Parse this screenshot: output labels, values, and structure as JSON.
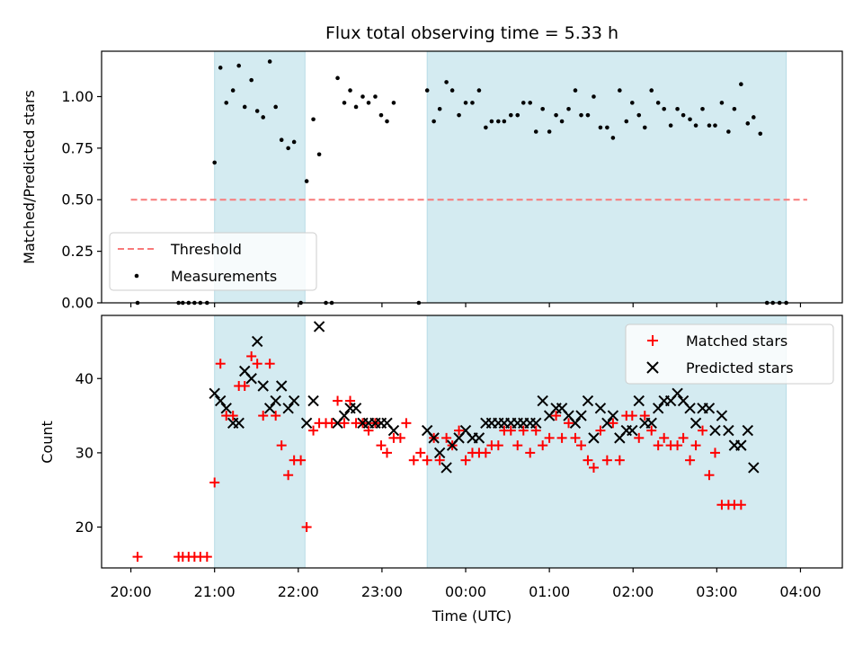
{
  "title": "Flux total observing time = 5.33 h",
  "chart_data": {
    "type": "scatter",
    "title": "Flux total observing time = 5.33 h",
    "xlabel": "Time (UTC)",
    "x_unit": "hours since 00:00 UTC (negative = previous evening)",
    "xlim": [
      -4.35,
      4.5
    ],
    "xticks": [
      -4,
      -3,
      -2,
      -1,
      0,
      1,
      2,
      3,
      4
    ],
    "xtick_labels": [
      "20:00",
      "21:00",
      "22:00",
      "23:00",
      "00:00",
      "01:00",
      "02:00",
      "03:00",
      "04:00"
    ],
    "shaded_intervals": [
      [
        -3.0,
        -1.92
      ],
      [
        -0.46,
        3.83
      ]
    ],
    "shade_color": "#d4ebf1",
    "top": {
      "ylabel": "Matched/Predicted stars",
      "ylim": [
        0.0,
        1.22
      ],
      "yticks": [
        0.0,
        0.25,
        0.5,
        0.75,
        1.0
      ],
      "ytick_labels": [
        "0.00",
        "0.25",
        "0.50",
        "0.75",
        "1.00"
      ],
      "legend": [
        "Threshold",
        "Measurements"
      ],
      "legend_position": "lower left",
      "threshold": {
        "name": "Threshold",
        "x": [
          -4.0,
          4.08
        ],
        "y": 0.5,
        "color": "#f87a7a"
      },
      "measurements": {
        "name": "Measurements",
        "color": "#000000",
        "points": [
          [
            -3.92,
            0
          ],
          [
            -3.43,
            0
          ],
          [
            -3.38,
            0
          ],
          [
            -3.31,
            0
          ],
          [
            -3.24,
            0
          ],
          [
            -3.17,
            0
          ],
          [
            -3.09,
            0
          ],
          [
            -3.0,
            0.68
          ],
          [
            -2.93,
            1.14
          ],
          [
            -2.86,
            0.97
          ],
          [
            -2.78,
            1.03
          ],
          [
            -2.71,
            1.15
          ],
          [
            -2.64,
            0.95
          ],
          [
            -2.56,
            1.08
          ],
          [
            -2.49,
            0.93
          ],
          [
            -2.42,
            0.9
          ],
          [
            -2.34,
            1.17
          ],
          [
            -2.27,
            0.95
          ],
          [
            -2.2,
            0.79
          ],
          [
            -2.12,
            0.75
          ],
          [
            -2.05,
            0.78
          ],
          [
            -1.97,
            0
          ],
          [
            -1.9,
            0.59
          ],
          [
            -1.82,
            0.89
          ],
          [
            -1.75,
            0.72
          ],
          [
            -1.67,
            0
          ],
          [
            -1.6,
            0
          ],
          [
            -1.53,
            1.09
          ],
          [
            -1.45,
            0.97
          ],
          [
            -1.38,
            1.03
          ],
          [
            -1.31,
            0.95
          ],
          [
            -1.23,
            1.0
          ],
          [
            -1.16,
            0.97
          ],
          [
            -1.08,
            1.0
          ],
          [
            -1.01,
            0.91
          ],
          [
            -0.94,
            0.88
          ],
          [
            -0.86,
            0.97
          ],
          [
            -0.56,
            0
          ],
          [
            -0.46,
            1.03
          ],
          [
            -0.38,
            0.88
          ],
          [
            -0.31,
            0.94
          ],
          [
            -0.23,
            1.07
          ],
          [
            -0.16,
            1.03
          ],
          [
            -0.08,
            0.91
          ],
          [
            0.0,
            0.97
          ],
          [
            0.08,
            0.97
          ],
          [
            0.16,
            1.03
          ],
          [
            0.24,
            0.85
          ],
          [
            0.31,
            0.88
          ],
          [
            0.39,
            0.88
          ],
          [
            0.46,
            0.88
          ],
          [
            0.54,
            0.91
          ],
          [
            0.62,
            0.91
          ],
          [
            0.69,
            0.97
          ],
          [
            0.77,
            0.97
          ],
          [
            0.84,
            0.83
          ],
          [
            0.92,
            0.94
          ],
          [
            1.0,
            0.83
          ],
          [
            1.08,
            0.91
          ],
          [
            1.15,
            0.88
          ],
          [
            1.23,
            0.94
          ],
          [
            1.31,
            1.03
          ],
          [
            1.38,
            0.91
          ],
          [
            1.46,
            0.91
          ],
          [
            1.53,
            1.0
          ],
          [
            1.61,
            0.85
          ],
          [
            1.69,
            0.85
          ],
          [
            1.76,
            0.8
          ],
          [
            1.84,
            1.03
          ],
          [
            1.92,
            0.88
          ],
          [
            1.99,
            0.97
          ],
          [
            2.07,
            0.91
          ],
          [
            2.14,
            0.85
          ],
          [
            2.22,
            1.03
          ],
          [
            2.3,
            0.97
          ],
          [
            2.37,
            0.94
          ],
          [
            2.45,
            0.86
          ],
          [
            2.53,
            0.94
          ],
          [
            2.6,
            0.91
          ],
          [
            2.68,
            0.89
          ],
          [
            2.75,
            0.86
          ],
          [
            2.83,
            0.94
          ],
          [
            2.91,
            0.86
          ],
          [
            2.98,
            0.86
          ],
          [
            3.06,
            0.97
          ],
          [
            3.14,
            0.83
          ],
          [
            3.21,
            0.94
          ],
          [
            3.29,
            1.06
          ],
          [
            3.37,
            0.87
          ],
          [
            3.44,
            0.9
          ],
          [
            3.52,
            0.82
          ],
          [
            3.6,
            0
          ],
          [
            3.67,
            0
          ],
          [
            3.75,
            0
          ],
          [
            3.83,
            0
          ]
        ]
      }
    },
    "bottom": {
      "ylabel": "Count",
      "ylim": [
        14.5,
        48.5
      ],
      "yticks": [
        20,
        30,
        40
      ],
      "ytick_labels": [
        "20",
        "30",
        "40"
      ],
      "legend": [
        "Matched stars",
        "Predicted stars"
      ],
      "legend_position": "upper right",
      "series": [
        {
          "name": "Matched stars",
          "marker": "plus",
          "color": "#ff0000",
          "points": [
            [
              -3.92,
              16
            ],
            [
              -3.43,
              16
            ],
            [
              -3.38,
              16
            ],
            [
              -3.31,
              16
            ],
            [
              -3.24,
              16
            ],
            [
              -3.17,
              16
            ],
            [
              -3.09,
              16
            ],
            [
              -3.0,
              26
            ],
            [
              -2.93,
              42
            ],
            [
              -2.86,
              35
            ],
            [
              -2.78,
              35
            ],
            [
              -2.71,
              39
            ],
            [
              -2.64,
              39
            ],
            [
              -2.56,
              43
            ],
            [
              -2.49,
              42
            ],
            [
              -2.42,
              35
            ],
            [
              -2.34,
              42
            ],
            [
              -2.27,
              35
            ],
            [
              -2.2,
              31
            ],
            [
              -2.12,
              27
            ],
            [
              -2.05,
              29
            ],
            [
              -1.97,
              29
            ],
            [
              -1.9,
              20
            ],
            [
              -1.82,
              33
            ],
            [
              -1.75,
              34
            ],
            [
              -1.67,
              34
            ],
            [
              -1.6,
              34
            ],
            [
              -1.53,
              37
            ],
            [
              -1.45,
              34
            ],
            [
              -1.38,
              37
            ],
            [
              -1.31,
              34
            ],
            [
              -1.23,
              34
            ],
            [
              -1.16,
              33
            ],
            [
              -1.08,
              34
            ],
            [
              -1.01,
              31
            ],
            [
              -0.94,
              30
            ],
            [
              -0.86,
              32
            ],
            [
              -0.78,
              32
            ],
            [
              -0.71,
              34
            ],
            [
              -0.62,
              29
            ],
            [
              -0.54,
              30
            ],
            [
              -0.46,
              29
            ],
            [
              -0.38,
              32
            ],
            [
              -0.31,
              29
            ],
            [
              -0.23,
              32
            ],
            [
              -0.16,
              31
            ],
            [
              -0.08,
              33
            ],
            [
              0.0,
              29
            ],
            [
              0.08,
              30
            ],
            [
              0.16,
              30
            ],
            [
              0.24,
              30
            ],
            [
              0.31,
              31
            ],
            [
              0.39,
              31
            ],
            [
              0.46,
              33
            ],
            [
              0.54,
              33
            ],
            [
              0.62,
              31
            ],
            [
              0.69,
              33
            ],
            [
              0.77,
              30
            ],
            [
              0.84,
              33
            ],
            [
              0.92,
              31
            ],
            [
              1.0,
              32
            ],
            [
              1.08,
              35
            ],
            [
              1.15,
              32
            ],
            [
              1.23,
              34
            ],
            [
              1.31,
              32
            ],
            [
              1.38,
              31
            ],
            [
              1.46,
              29
            ],
            [
              1.53,
              28
            ],
            [
              1.61,
              33
            ],
            [
              1.69,
              29
            ],
            [
              1.76,
              34
            ],
            [
              1.84,
              29
            ],
            [
              1.92,
              35
            ],
            [
              1.99,
              35
            ],
            [
              2.07,
              32
            ],
            [
              2.14,
              35
            ],
            [
              2.22,
              33
            ],
            [
              2.3,
              31
            ],
            [
              2.37,
              32
            ],
            [
              2.45,
              31
            ],
            [
              2.53,
              31
            ],
            [
              2.6,
              32
            ],
            [
              2.68,
              29
            ],
            [
              2.75,
              31
            ],
            [
              2.83,
              33
            ],
            [
              2.91,
              27
            ],
            [
              2.98,
              30
            ],
            [
              3.06,
              23
            ],
            [
              3.14,
              23
            ],
            [
              3.21,
              23
            ],
            [
              3.29,
              23
            ]
          ]
        },
        {
          "name": "Predicted stars",
          "marker": "x",
          "color": "#000000",
          "points": [
            [
              -3.0,
              38
            ],
            [
              -2.93,
              37
            ],
            [
              -2.86,
              36
            ],
            [
              -2.78,
              34
            ],
            [
              -2.71,
              34
            ],
            [
              -2.64,
              41
            ],
            [
              -2.56,
              40
            ],
            [
              -2.49,
              45
            ],
            [
              -2.42,
              39
            ],
            [
              -2.34,
              36
            ],
            [
              -2.27,
              37
            ],
            [
              -2.2,
              39
            ],
            [
              -2.12,
              36
            ],
            [
              -2.05,
              37
            ],
            [
              -1.97,
              null
            ],
            [
              -1.9,
              34
            ],
            [
              -1.82,
              37
            ],
            [
              -1.75,
              47
            ],
            [
              -1.53,
              34
            ],
            [
              -1.45,
              35
            ],
            [
              -1.38,
              36
            ],
            [
              -1.31,
              36
            ],
            [
              -1.23,
              34
            ],
            [
              -1.16,
              34
            ],
            [
              -1.08,
              34
            ],
            [
              -1.01,
              34
            ],
            [
              -0.94,
              34
            ],
            [
              -0.86,
              33
            ],
            [
              -0.46,
              33
            ],
            [
              -0.38,
              32
            ],
            [
              -0.31,
              30
            ],
            [
              -0.23,
              28
            ],
            [
              -0.16,
              31
            ],
            [
              -0.08,
              32
            ],
            [
              0.0,
              33
            ],
            [
              0.08,
              32
            ],
            [
              0.16,
              32
            ],
            [
              0.24,
              34
            ],
            [
              0.31,
              34
            ],
            [
              0.39,
              34
            ],
            [
              0.46,
              34
            ],
            [
              0.54,
              34
            ],
            [
              0.62,
              34
            ],
            [
              0.69,
              34
            ],
            [
              0.77,
              34
            ],
            [
              0.84,
              34
            ],
            [
              0.92,
              37
            ],
            [
              1.0,
              35
            ],
            [
              1.08,
              36
            ],
            [
              1.15,
              36
            ],
            [
              1.23,
              35
            ],
            [
              1.31,
              34
            ],
            [
              1.38,
              35
            ],
            [
              1.46,
              37
            ],
            [
              1.53,
              32
            ],
            [
              1.61,
              36
            ],
            [
              1.69,
              34
            ],
            [
              1.76,
              35
            ],
            [
              1.84,
              32
            ],
            [
              1.92,
              33
            ],
            [
              1.99,
              33
            ],
            [
              2.07,
              37
            ],
            [
              2.14,
              34
            ],
            [
              2.22,
              34
            ],
            [
              2.3,
              36
            ],
            [
              2.37,
              37
            ],
            [
              2.45,
              37
            ],
            [
              2.53,
              38
            ],
            [
              2.6,
              37
            ],
            [
              2.68,
              36
            ],
            [
              2.75,
              34
            ],
            [
              2.83,
              36
            ],
            [
              2.91,
              36
            ],
            [
              2.98,
              33
            ],
            [
              3.06,
              35
            ],
            [
              3.14,
              33
            ],
            [
              3.21,
              31
            ],
            [
              3.29,
              31
            ],
            [
              3.37,
              33
            ],
            [
              3.44,
              28
            ]
          ]
        }
      ]
    }
  }
}
